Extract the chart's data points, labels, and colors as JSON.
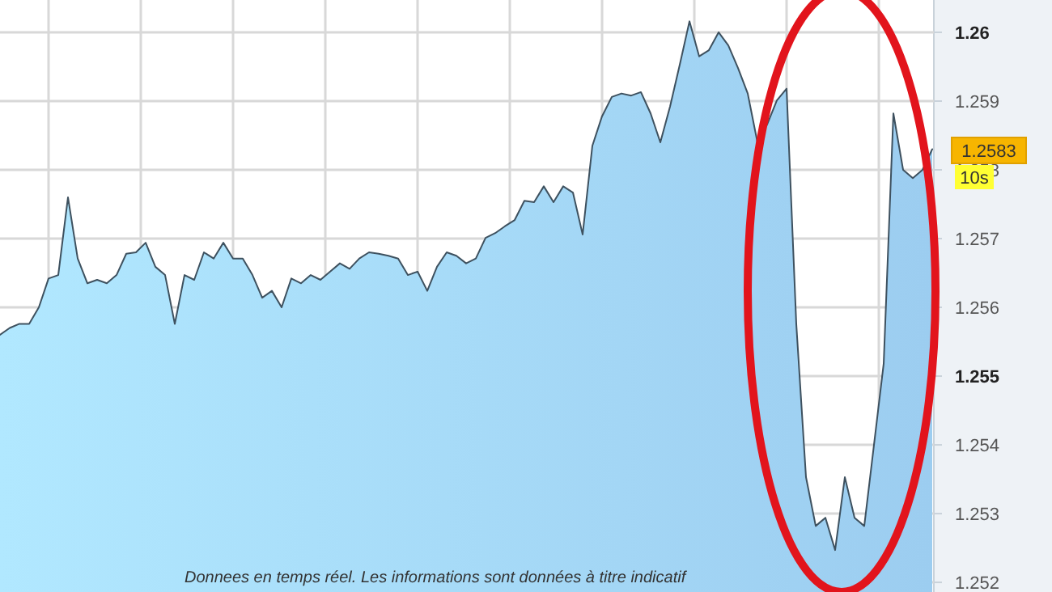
{
  "chart_data": {
    "type": "area",
    "categories": [
      null,
      null,
      null,
      null,
      null,
      null,
      null,
      null,
      null,
      null,
      null,
      null,
      null,
      null,
      null,
      null,
      null,
      null,
      null,
      null,
      null,
      null,
      null,
      null,
      null,
      null,
      null,
      null,
      null,
      null,
      null,
      null,
      null,
      null,
      null,
      null,
      null,
      null,
      null,
      null,
      null,
      null,
      null,
      null,
      null,
      null,
      null,
      null,
      null,
      null,
      null,
      null,
      null,
      null,
      null,
      null,
      null,
      null,
      null,
      null,
      null,
      null,
      null,
      null,
      null,
      null,
      null,
      null,
      null,
      null,
      null,
      null,
      null,
      null,
      null,
      null,
      null,
      null,
      null,
      null,
      null,
      null,
      null,
      null,
      null,
      null,
      null,
      null,
      null,
      null,
      null,
      null,
      null,
      null,
      null,
      null,
      null
    ],
    "series": [
      {
        "color": "#9ccdf0",
        "values": [
          1.2556,
          1.2557,
          1.25576,
          1.25576,
          1.256,
          1.25642,
          1.25647,
          1.2576,
          1.25671,
          1.25635,
          1.2564,
          1.25635,
          1.25647,
          1.25678,
          1.2568,
          1.25694,
          1.25659,
          1.25647,
          1.25576,
          1.25647,
          1.2564,
          1.2568,
          1.25671,
          1.25694,
          1.25671,
          1.25671,
          1.25647,
          1.25614,
          1.25624,
          1.256,
          1.25642,
          1.25635,
          1.25647,
          1.2564,
          1.25652,
          1.25664,
          1.25656,
          1.25671,
          1.2568,
          1.25678,
          1.25675,
          1.25671,
          1.25647,
          1.25652,
          1.25624,
          1.25659,
          1.2568,
          1.25675,
          1.25664,
          1.25671,
          1.25701,
          1.25708,
          1.25718,
          1.25727,
          1.25755,
          1.25753,
          1.25776,
          1.25753,
          1.25776,
          1.25767,
          1.25706,
          1.25835,
          1.25878,
          1.25906,
          1.25911,
          1.25908,
          1.25913,
          1.25882,
          1.2584,
          1.25892,
          1.25953,
          1.26016,
          1.25965,
          1.25974,
          1.26,
          1.25981,
          1.25948,
          1.25911,
          1.2584,
          1.25866,
          1.25901,
          1.25918,
          1.25576,
          1.25353,
          1.25282,
          1.25294,
          1.25247,
          1.25353,
          1.25294,
          1.25282,
          1.254,
          1.25518,
          1.25882,
          1.258,
          1.25788,
          1.258,
          1.2583
        ]
      }
    ],
    "ylim": [
      1.25186,
      1.26047
    ],
    "yticks": [
      1.252,
      1.253,
      1.254,
      1.255,
      1.256,
      1.257,
      1.258,
      1.259,
      1.26
    ],
    "grid": true,
    "annotations": [
      "1.2583",
      "10s",
      "Donnees en temps réel. Les informations sont données à titre indicatif"
    ]
  }
}
